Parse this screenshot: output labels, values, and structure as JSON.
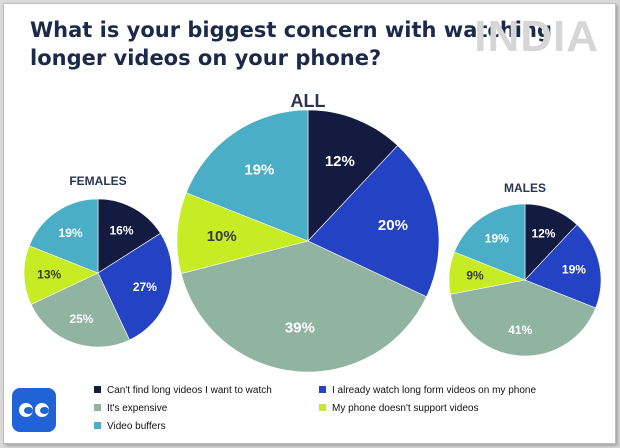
{
  "title": "What is your biggest concern with watching longer videos on your phone?",
  "watermark": "INDIA",
  "colors": {
    "cant_find": "#141b40",
    "already_watch": "#2443c4",
    "expensive": "#91b3a2",
    "no_support": "#c7ec23",
    "buffers": "#4aaec7"
  },
  "logo": "chat-bubble-logo-icon",
  "chart_data": [
    {
      "type": "pie",
      "title": "FEMALES",
      "categories": [
        "Can't find long videos I want to watch",
        "I already watch long form videos on my phone",
        "It's expensive",
        "My phone doesn't support videos",
        "Video buffers"
      ],
      "values": [
        16,
        27,
        25,
        13,
        19
      ],
      "labels": [
        "16%",
        "27%",
        "25%",
        "13%",
        "19%"
      ]
    },
    {
      "type": "pie",
      "title": "ALL",
      "categories": [
        "Can't find long videos I want to watch",
        "I already watch long form videos on my phone",
        "It's expensive",
        "My phone doesn't support videos",
        "Video buffers"
      ],
      "values": [
        12,
        20,
        39,
        10,
        19
      ],
      "labels": [
        "12%",
        "20%",
        "39%",
        "10%",
        "19%"
      ]
    },
    {
      "type": "pie",
      "title": "MALES",
      "categories": [
        "Can't find long videos I want to watch",
        "I already watch long form videos on my phone",
        "It's expensive",
        "My phone doesn't support videos",
        "Video buffers"
      ],
      "values": [
        12,
        19,
        41,
        9,
        19
      ],
      "labels": [
        "12%",
        "19%",
        "41%",
        "9%",
        "19%"
      ]
    }
  ],
  "legend": [
    {
      "label": "Can't find long videos I want to watch",
      "color": "#141b40"
    },
    {
      "label": "I already watch long form videos on my phone",
      "color": "#2443c4"
    },
    {
      "label": "It's expensive",
      "color": "#91b3a2"
    },
    {
      "label": "My phone doesn't support videos",
      "color": "#c7ec23"
    },
    {
      "label": "Video buffers",
      "color": "#4aaec7"
    }
  ]
}
